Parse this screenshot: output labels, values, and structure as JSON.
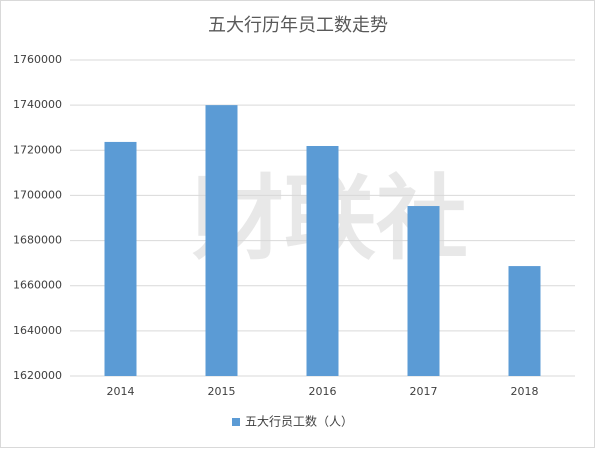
{
  "chart_data": {
    "type": "bar",
    "title": "五大行历年员工数走势",
    "categories": [
      "2014",
      "2015",
      "2016",
      "2017",
      "2018"
    ],
    "series": [
      {
        "name": "五大行员工数（人）",
        "color": "#5b9bd5",
        "values": [
          1723700,
          1740000,
          1721900,
          1695300,
          1668700
        ]
      }
    ],
    "ylim": [
      1620000,
      1760000
    ],
    "yticks": [
      1620000,
      1640000,
      1660000,
      1680000,
      1700000,
      1720000,
      1740000,
      1760000
    ],
    "grid": true,
    "legend": "bottom"
  },
  "watermark": "财联社"
}
